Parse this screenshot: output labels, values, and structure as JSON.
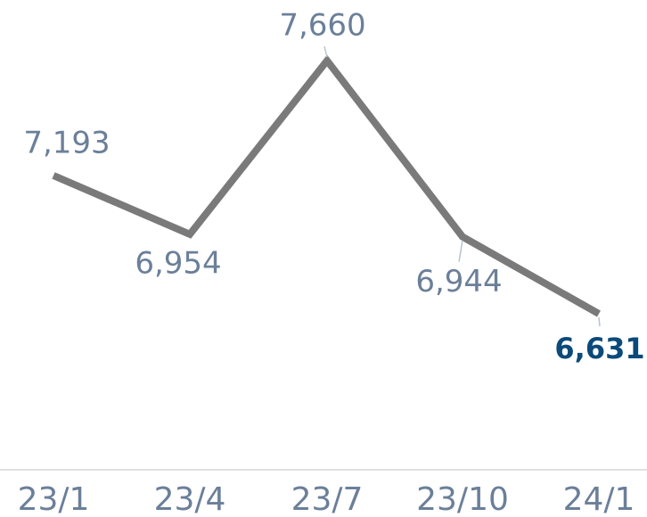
{
  "chart_data": {
    "type": "line",
    "categories": [
      "23/1",
      "23/4",
      "23/7",
      "23/10",
      "24/1"
    ],
    "values": [
      7193,
      6954,
      7660,
      6944,
      6631
    ],
    "value_labels": [
      "7,193",
      "6,954",
      "7,660",
      "6,944",
      "6,631"
    ],
    "color": "#7a7a7a",
    "label_color": "#6b7f99",
    "highlight_color": "#0b4a7a"
  }
}
